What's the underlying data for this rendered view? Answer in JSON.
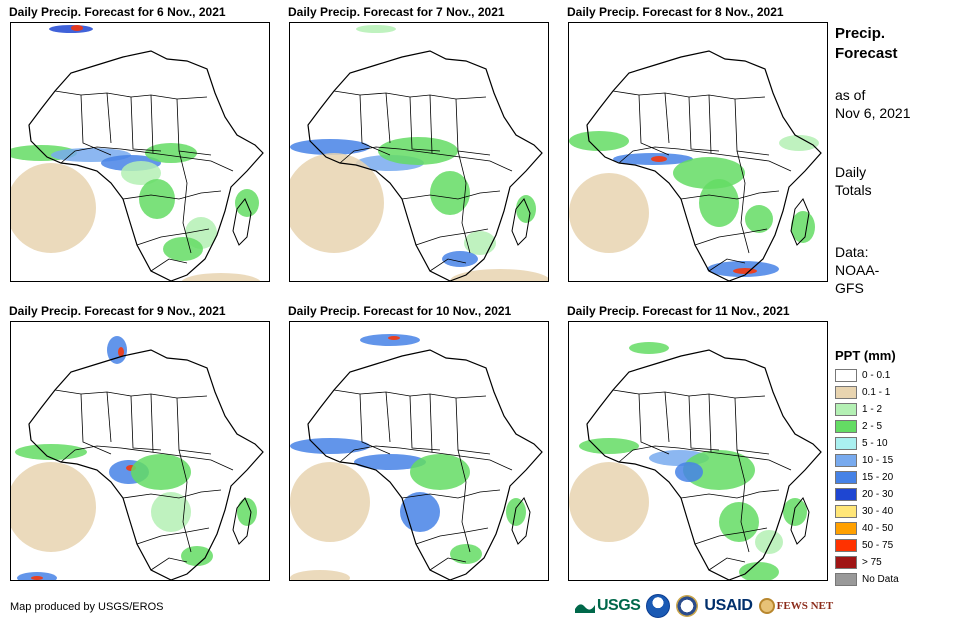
{
  "panels": [
    {
      "title": "Daily Precip. Forecast for 6 Nov., 2021"
    },
    {
      "title": "Daily Precip. Forecast for 7 Nov., 2021"
    },
    {
      "title": "Daily Precip. Forecast for 8 Nov., 2021"
    },
    {
      "title": "Daily Precip. Forecast for 9 Nov., 2021"
    },
    {
      "title": "Daily Precip. Forecast for 10 Nov., 2021"
    },
    {
      "title": "Daily Precip. Forecast for 11 Nov., 2021"
    }
  ],
  "side": {
    "heading_1": "Precip.",
    "heading_2": "Forecast",
    "asof_1": "as of",
    "asof_2": "Nov 6, 2021",
    "totals_1": "Daily",
    "totals_2": "Totals",
    "data_1": "Data:",
    "data_2": "NOAA-",
    "data_3": "GFS"
  },
  "legend": {
    "title": "PPT (mm)",
    "items": [
      {
        "label": "0 - 0.1",
        "color": "#ffffff"
      },
      {
        "label": "0.1 - 1",
        "color": "#e8d4b0"
      },
      {
        "label": "1 - 2",
        "color": "#b4f0b4"
      },
      {
        "label": "2 - 5",
        "color": "#64dc64"
      },
      {
        "label": "5 - 10",
        "color": "#aaf0f0"
      },
      {
        "label": "10 - 15",
        "color": "#78aaee"
      },
      {
        "label": "15 - 20",
        "color": "#4682e6"
      },
      {
        "label": "20 - 30",
        "color": "#1e46d2"
      },
      {
        "label": "30 - 40",
        "color": "#ffe678"
      },
      {
        "label": "40 - 50",
        "color": "#ffa000"
      },
      {
        "label": "50 - 75",
        "color": "#ff3200"
      },
      {
        "label": "> 75",
        "color": "#a01414"
      },
      {
        "label": "No Data",
        "color": "#999999"
      }
    ]
  },
  "credit": "Map produced by USGS/EROS",
  "logos": {
    "usgs": "USGS",
    "usaid": "USAID",
    "fews": "FEWS NET"
  }
}
